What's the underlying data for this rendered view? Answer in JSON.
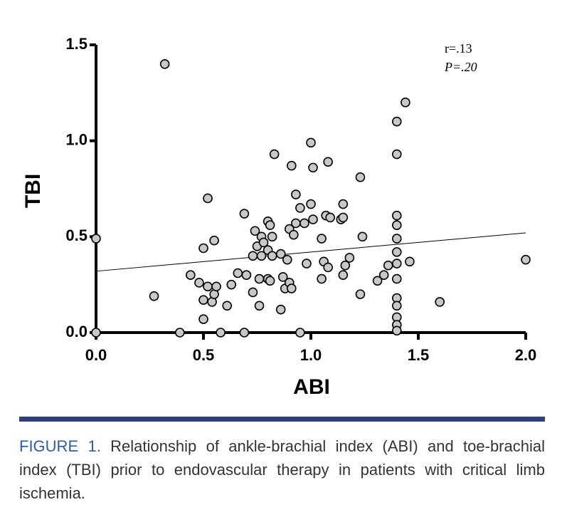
{
  "chart_data": {
    "type": "scatter",
    "x_label": "ABI",
    "y_label": "TBI",
    "annotations": [
      "r=.13",
      "P=.20"
    ],
    "x": [
      0,
      0,
      0.32,
      0.27,
      0.39,
      0.44,
      0.48,
      0.5,
      0.52,
      0.55,
      0.5,
      0.5,
      0.52,
      0.54,
      0.55,
      0.56,
      0.58,
      0.61,
      0.63,
      0.66,
      0.69,
      0.69,
      0.7,
      0.73,
      0.73,
      0.74,
      0.75,
      0.76,
      0.76,
      0.77,
      0.77,
      0.78,
      0.8,
      0.8,
      0.81,
      0.82,
      0.8,
      0.81,
      0.82,
      0.83,
      0.86,
      0.86,
      0.87,
      0.88,
      0.89,
      0.9,
      0.9,
      0.91,
      0.91,
      0.92,
      0.93,
      0.93,
      0.95,
      0.95,
      0.97,
      0.98,
      1.0,
      1.0,
      1.01,
      1.01,
      1.05,
      1.05,
      1.06,
      1.07,
      1.08,
      1.08,
      1.09,
      1.14,
      1.15,
      1.15,
      1.16,
      1.18,
      1.15,
      1.23,
      1.24,
      1.23,
      1.31,
      1.34,
      1.36,
      1.4,
      1.4,
      1.4,
      1.4,
      1.4,
      1.4,
      1.4,
      1.4,
      1.4,
      1.4,
      1.4,
      1.4,
      1.4,
      1.44,
      1.46,
      1.6,
      2.0
    ],
    "values": [
      0.49,
      0,
      1.4,
      0.19,
      0,
      0.3,
      0.26,
      0.44,
      0.7,
      0.48,
      0.17,
      0.07,
      0.24,
      0.16,
      0.2,
      0.24,
      0,
      0.14,
      0.25,
      0.31,
      0.62,
      0,
      0.3,
      0.21,
      0.4,
      0.53,
      0.45,
      0.14,
      0.28,
      0.5,
      0.4,
      0.47,
      0.58,
      0.43,
      0.56,
      0.5,
      0.28,
      0.27,
      0.4,
      0.93,
      0.12,
      0.41,
      0.29,
      0.23,
      0.38,
      0.26,
      0.54,
      0.23,
      0.87,
      0.51,
      0.72,
      0.57,
      0.65,
      0,
      0.57,
      0.36,
      0.67,
      0.99,
      0.59,
      0.86,
      0.49,
      0.28,
      0.37,
      0.61,
      0.89,
      0.34,
      0.6,
      0.59,
      0.67,
      0.6,
      0.35,
      0.39,
      0.3,
      0.81,
      0.5,
      0.2,
      0.27,
      0.3,
      0.35,
      1.1,
      0.93,
      0.61,
      0.56,
      0.49,
      0.42,
      0.36,
      0.28,
      0.18,
      0.14,
      0.08,
      0.04,
      0.01,
      1.2,
      0.37,
      0.16,
      0.38
    ],
    "color": "#c8c8c8",
    "regression": {
      "x": [
        0,
        2.0
      ],
      "y": [
        0.32,
        0.52
      ]
    },
    "xlim": [
      0,
      2.0
    ],
    "ylim": [
      0,
      1.5
    ],
    "xticks": [
      {
        "value": 0,
        "label": "0.0"
      },
      {
        "value": 0.5,
        "label": "0.5"
      },
      {
        "value": 1,
        "label": "1.0"
      },
      {
        "value": 1.5,
        "label": "1.5"
      },
      {
        "value": 2,
        "label": "2.0"
      }
    ],
    "yticks": [
      {
        "value": 0,
        "label": "0.0"
      },
      {
        "value": 0.5,
        "label": "0.5"
      },
      {
        "value": 1,
        "label": "1.0"
      },
      {
        "value": 1.5,
        "label": "1.5"
      }
    ]
  },
  "caption": {
    "label": "FIGURE 1.",
    "text": "Relationship of ankle-brachial index (ABI) and toe-brachial index (TBI) prior to endovascular therapy in patients with critical limb ischemia."
  }
}
